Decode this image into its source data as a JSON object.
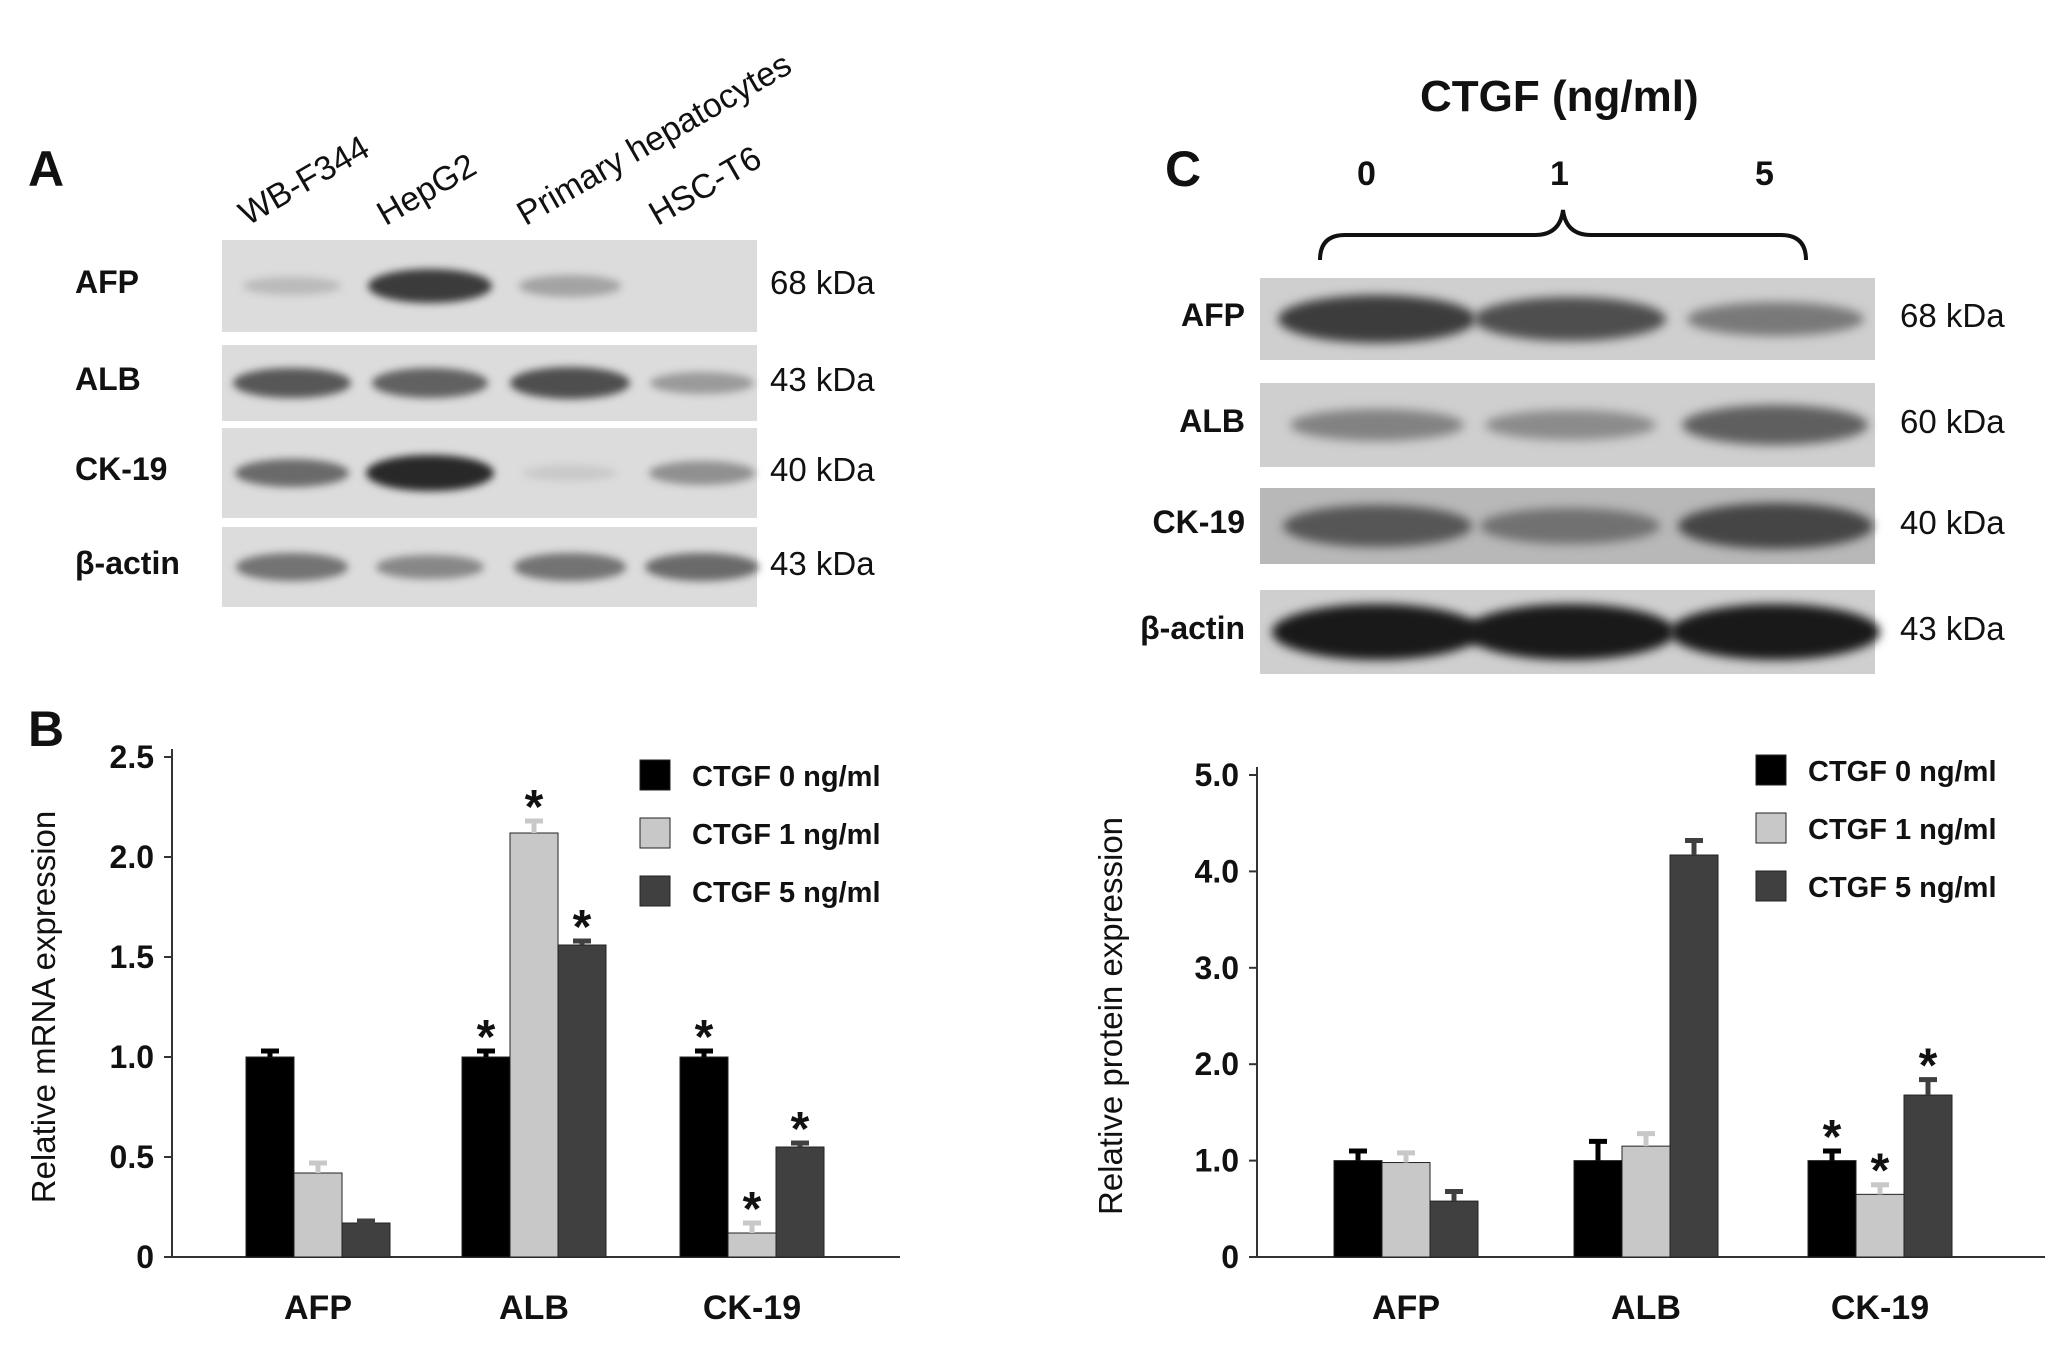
{
  "panel_a": {
    "letter": "A",
    "lanes": [
      "WB-F344",
      "HepG2",
      "Primary hepatocytes",
      "HSC-T6"
    ],
    "rows": [
      {
        "label": "AFP",
        "kda": "68 kDa",
        "bands": [
          0.18,
          0.85,
          0.3,
          0.0
        ]
      },
      {
        "label": "ALB",
        "kda": "43 kDa",
        "bands": [
          0.7,
          0.65,
          0.75,
          0.35
        ]
      },
      {
        "label": "CK-19",
        "kda": "40 kDa",
        "bands": [
          0.6,
          0.95,
          0.1,
          0.4
        ]
      },
      {
        "label": "β-actin",
        "kda": "43 kDa",
        "bands": [
          0.55,
          0.45,
          0.55,
          0.6
        ]
      }
    ]
  },
  "panel_b_letter": "B",
  "panel_c": {
    "letter": "C",
    "title": "CTGF (ng/ml)",
    "concentrations": [
      "0",
      "1",
      "5"
    ],
    "rows": [
      {
        "label": "AFP",
        "kda": "68 kDa",
        "bands": [
          0.8,
          0.7,
          0.45
        ]
      },
      {
        "label": "ALB",
        "kda": "60 kDa",
        "bands": [
          0.4,
          0.35,
          0.6
        ]
      },
      {
        "label": "CK-19",
        "kda": "40 kDa",
        "bands": [
          0.65,
          0.5,
          0.75
        ]
      },
      {
        "label": "β-actin",
        "kda": "43 kDa",
        "bands": [
          1.0,
          1.0,
          1.0
        ]
      }
    ]
  },
  "colors": {
    "series0": "#000000",
    "series1": "#c8c8c8",
    "series2": "#404040"
  },
  "chart_data": [
    {
      "type": "bar",
      "ylabel": "Relative mRNA expression",
      "categories": [
        "AFP",
        "ALB",
        "CK-19"
      ],
      "ylim": [
        0,
        2.5
      ],
      "yticks": [
        "0",
        "0.5",
        "1.0",
        "1.5",
        "2.0",
        "2.5"
      ],
      "legend_position": "top-right",
      "series": [
        {
          "name": "CTGF  0 ng/ml",
          "values": [
            1.0,
            1.0,
            1.0
          ],
          "errors": [
            0.03,
            0.03,
            0.03
          ]
        },
        {
          "name": "CTGF  1 ng/ml",
          "values": [
            0.42,
            2.12,
            0.12
          ],
          "errors": [
            0.05,
            0.06,
            0.05
          ]
        },
        {
          "name": "CTGF  5 ng/ml",
          "values": [
            0.17,
            1.56,
            0.55
          ],
          "errors": [
            0.01,
            0.02,
            0.02
          ]
        }
      ],
      "significance": [
        [
          false,
          true,
          true
        ],
        [
          false,
          true,
          true
        ],
        [
          false,
          true,
          true
        ]
      ],
      "annotation": "*"
    },
    {
      "type": "bar",
      "ylabel": "Relative protein expression",
      "categories": [
        "AFP",
        "ALB",
        "CK-19"
      ],
      "ylim": [
        0,
        5.0
      ],
      "yticks": [
        "0",
        "1.0",
        "2.0",
        "3.0",
        "4.0",
        "5.0"
      ],
      "legend_position": "top-right",
      "series": [
        {
          "name": "CTGF  0 ng/ml",
          "values": [
            1.0,
            1.0,
            1.0
          ],
          "errors": [
            0.1,
            0.2,
            0.1
          ]
        },
        {
          "name": "CTGF  1 ng/ml",
          "values": [
            0.98,
            1.15,
            0.65
          ],
          "errors": [
            0.1,
            0.13,
            0.1
          ]
        },
        {
          "name": "CTGF  5 ng/ml",
          "values": [
            0.58,
            4.17,
            1.68
          ],
          "errors": [
            0.1,
            0.15,
            0.16
          ]
        }
      ],
      "significance": [
        [
          false,
          false,
          true
        ],
        [
          false,
          false,
          true
        ],
        [
          false,
          false,
          true
        ]
      ],
      "annotation": "*"
    }
  ]
}
